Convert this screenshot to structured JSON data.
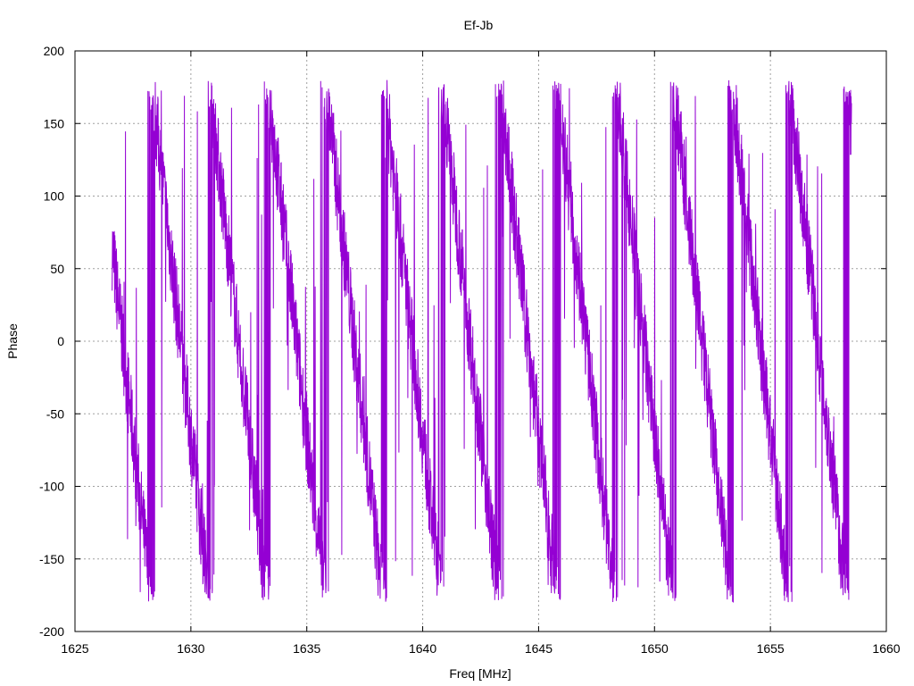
{
  "chart_data": {
    "type": "line",
    "title": "Ef-Jb",
    "xlabel": "Freq [MHz]",
    "ylabel": "Phase",
    "xlim": [
      1625,
      1660
    ],
    "ylim": [
      -200,
      200
    ],
    "xticks": [
      1625,
      1630,
      1635,
      1640,
      1645,
      1650,
      1655,
      1660
    ],
    "yticks": [
      -200,
      -150,
      -100,
      -50,
      0,
      50,
      100,
      150,
      200
    ],
    "grid": true,
    "series_color": "#9400d3",
    "series": [
      {
        "x_start": 1626.6,
        "x_end": 1658.5,
        "wrap_frequencies": [
          1628.3,
          1630.8,
          1633.3,
          1635.8,
          1638.3,
          1640.8,
          1643.3,
          1645.8,
          1648.3,
          1650.8,
          1653.3,
          1655.8,
          1658.3
        ],
        "phase_range": [
          -180,
          180
        ],
        "noise": "high"
      }
    ]
  }
}
